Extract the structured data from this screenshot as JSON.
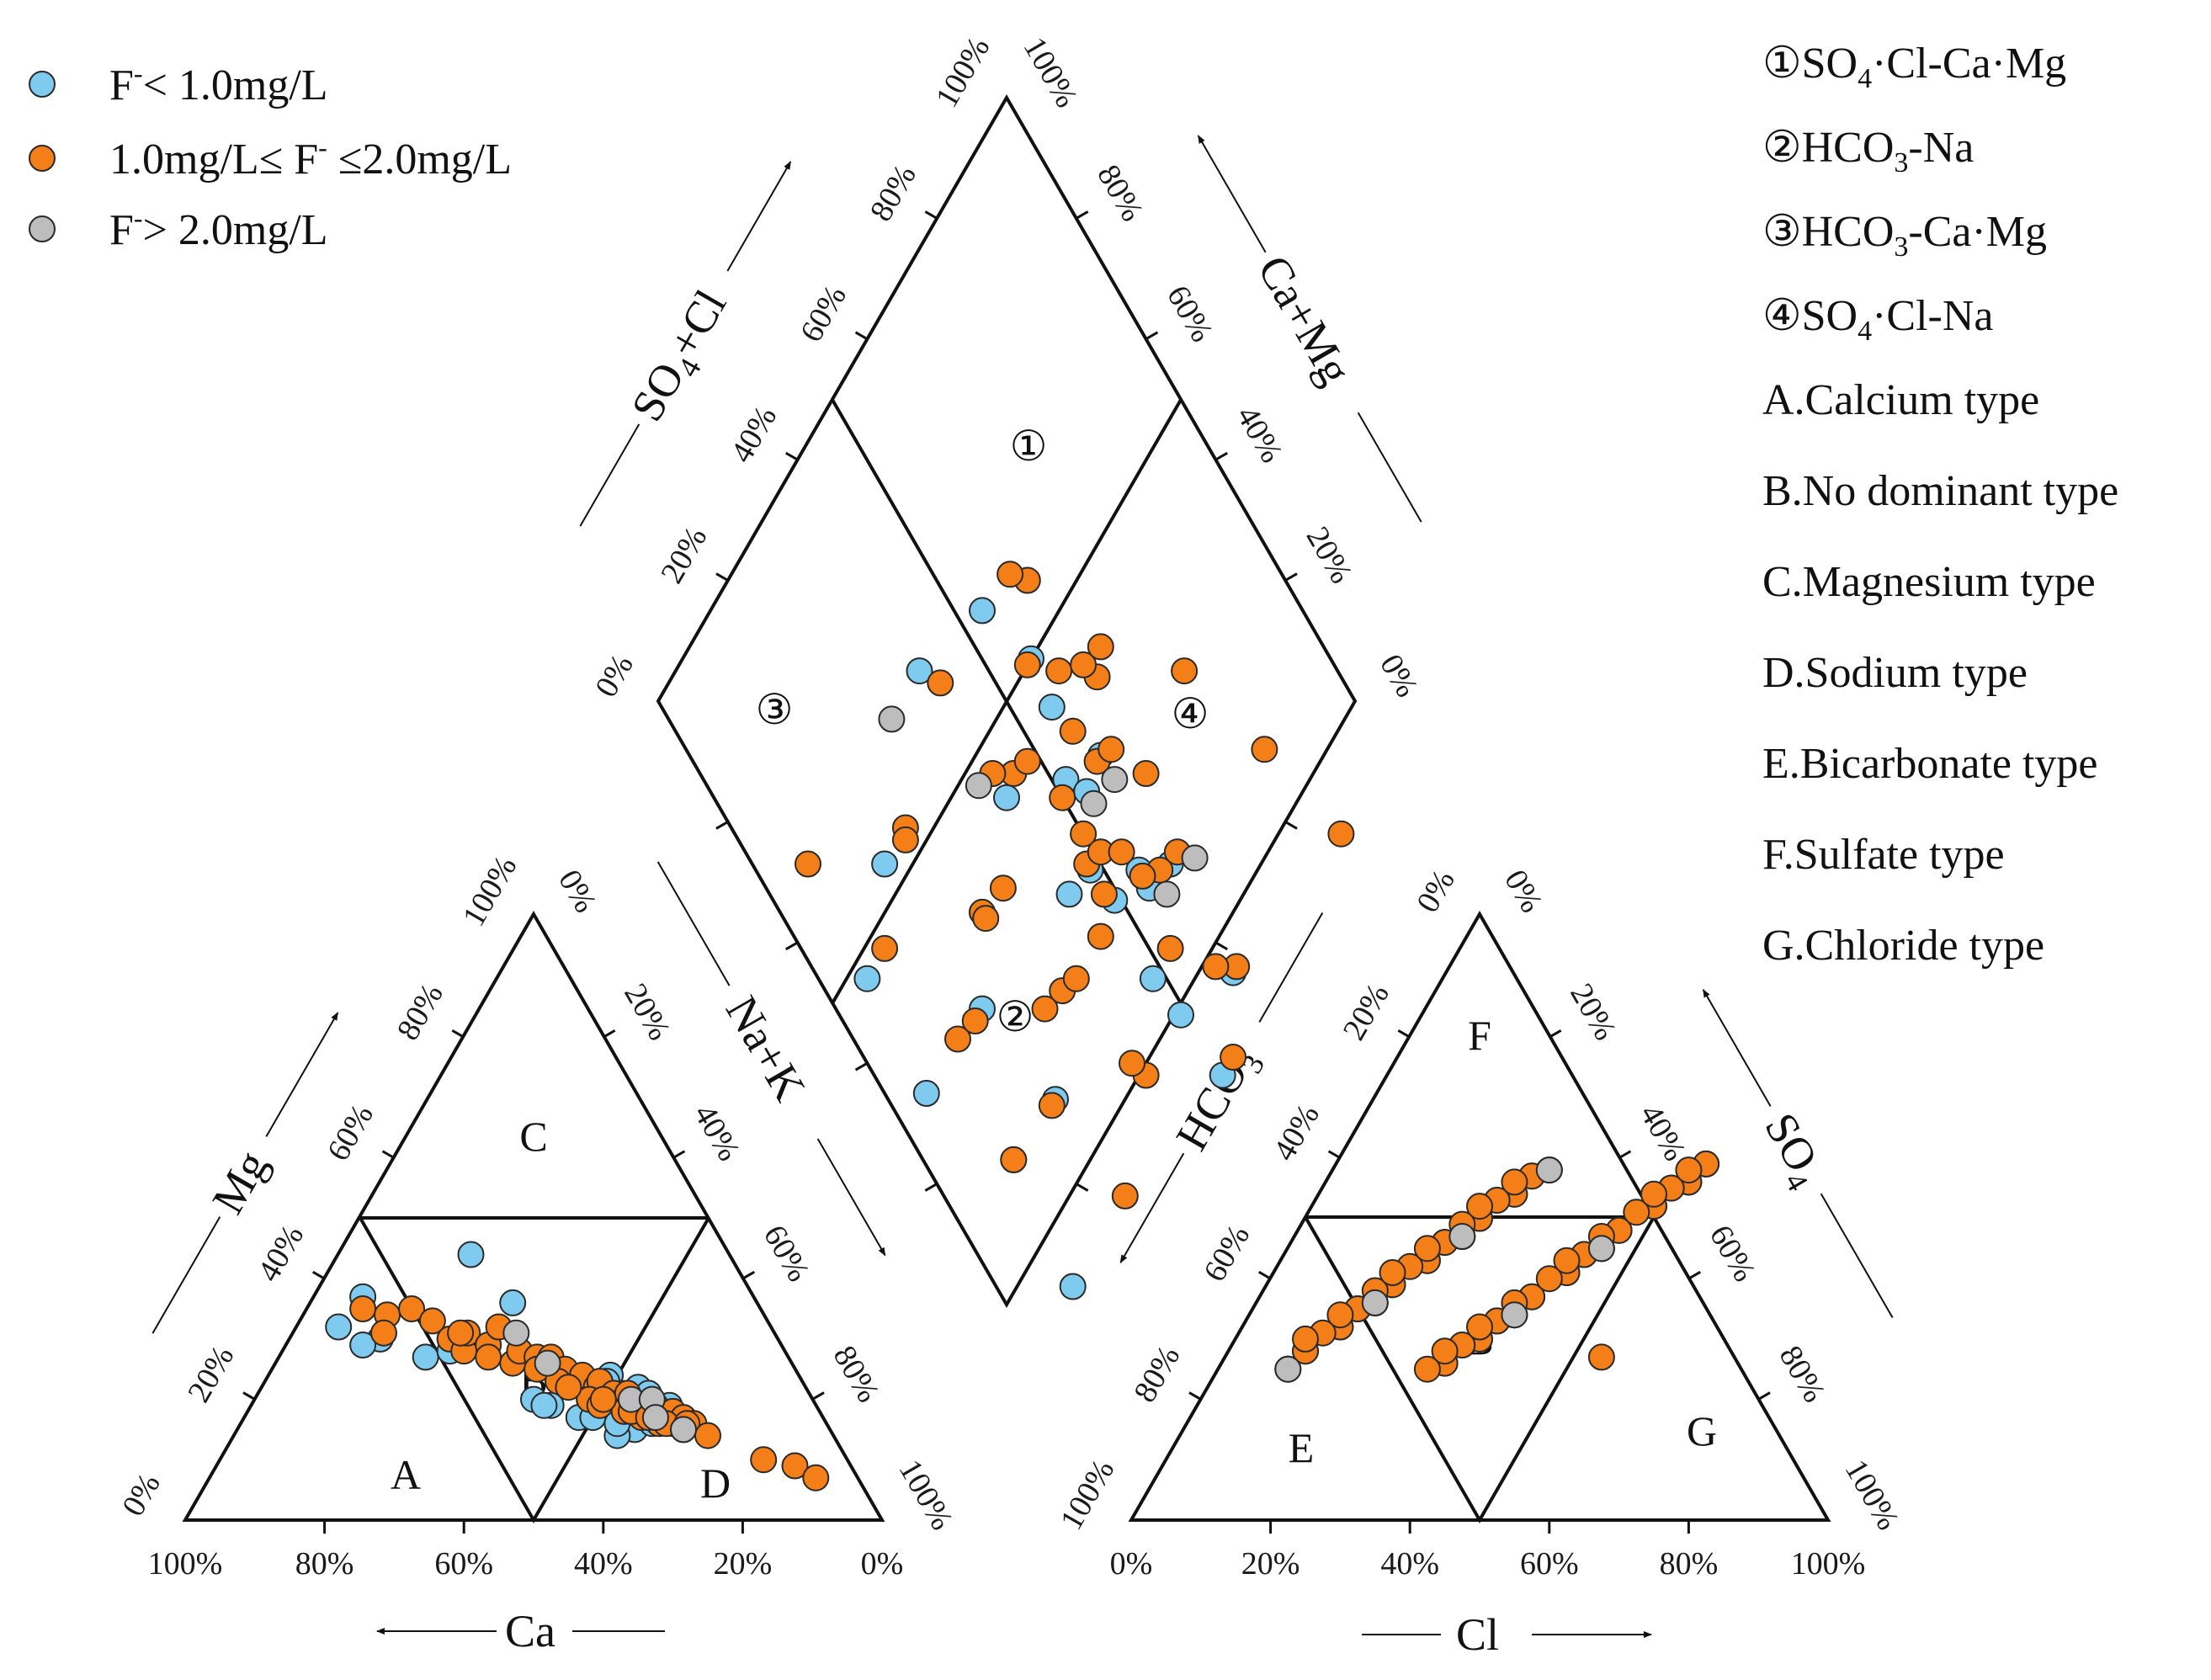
{
  "chart_data": {
    "type": "scatter",
    "title": "",
    "colors": {
      "low": "#7fcbef",
      "mid": "#f47e17",
      "high": "#bdbdbd"
    },
    "legend": {
      "position": "top-left",
      "entries": [
        {
          "key": "low",
          "parts": [
            "F",
            "-",
            "< 1.0mg/L"
          ]
        },
        {
          "key": "mid",
          "parts": [
            "1.0mg/L≤ F",
            "-",
            " ≤2.0mg/L"
          ]
        },
        {
          "key": "high",
          "parts": [
            "F",
            "-",
            "> 2.0mg/L"
          ]
        }
      ]
    },
    "zone_notes": [
      [
        "①SO",
        "4",
        "·Cl-Ca·Mg"
      ],
      [
        "②HCO",
        "3",
        "-Na"
      ],
      [
        "③HCO",
        "3",
        "-Ca·Mg"
      ],
      [
        "④SO",
        "4",
        "·Cl-Na"
      ],
      [
        "A.Calcium type"
      ],
      [
        "B.No dominant type"
      ],
      [
        "C.Magnesium type"
      ],
      [
        "D.Sodium type"
      ],
      [
        "E.Bicarbonate type"
      ],
      [
        "F.Sulfate type"
      ],
      [
        "G.Chloride type"
      ]
    ],
    "axes": {
      "ca": "Ca",
      "mg": "Mg",
      "nak": "Na+K",
      "cl": "Cl",
      "so4": [
        "SO",
        "4"
      ],
      "hco3": [
        "HCO",
        "3"
      ],
      "so4cl": [
        "SO",
        "4",
        "+Cl"
      ],
      "camg": "Ca+Mg"
    },
    "tick_labels": [
      "0%",
      "20%",
      "40%",
      "60%",
      "80%",
      "100%"
    ],
    "tick_labels_reversed": [
      "100%",
      "80%",
      "60%",
      "40%",
      "20%",
      "0%"
    ],
    "zone_labels": {
      "cation": [
        "A",
        "B",
        "C",
        "D"
      ],
      "anion": [
        "E",
        "B",
        "F",
        "G"
      ],
      "diamond": [
        "①",
        "②",
        "③",
        "④"
      ]
    },
    "units": "percent of meq",
    "series": [
      {
        "name": "F- < 1.0mg/L",
        "key": "low",
        "points": [
          [
            40,
            20,
            0
          ],
          [
            56,
            37,
            34
          ],
          [
            62,
            32,
            29
          ],
          [
            57,
            30,
            33
          ],
          [
            52,
            27,
            27
          ],
          [
            48,
            28,
            33
          ],
          [
            60,
            29,
            30
          ],
          [
            37,
            44,
            0
          ],
          [
            35,
            36,
            0
          ],
          [
            27,
            24,
            0
          ],
          [
            27,
            21,
            0
          ],
          [
            26,
            19,
            0
          ],
          [
            28,
            23,
            0
          ],
          [
            24,
            22,
            0
          ],
          [
            23,
            21,
            0
          ],
          [
            38,
            19,
            0
          ],
          [
            39,
            19,
            0
          ],
          [
            32,
            20,
            0
          ],
          [
            35,
            17,
            0
          ],
          [
            33,
            17,
            0
          ],
          [
            28,
            15,
            0
          ],
          [
            25,
            16,
            0
          ],
          [
            31,
            14,
            0
          ],
          [
            30,
            16,
            0
          ],
          [
            22,
            18,
            0
          ],
          [
            21,
            19,
            0
          ]
        ]
      },
      {
        "name": "1.0mg/L <= F- <= 2.0mg/L",
        "key": "mid",
        "points": [
          [
            57,
            35,
            0
          ],
          [
            54,
            34,
            0
          ],
          [
            50,
            35,
            0
          ],
          [
            56,
            31,
            0
          ],
          [
            48,
            33,
            0
          ],
          [
            47,
            30,
            0
          ],
          [
            46,
            28,
            0
          ],
          [
            44,
            31,
            0
          ],
          [
            42,
            29,
            0
          ],
          [
            40,
            26,
            0
          ],
          [
            38,
            28,
            0
          ],
          [
            36,
            27,
            0
          ],
          [
            34,
            27,
            0
          ],
          [
            33,
            25,
            0
          ],
          [
            31,
            24,
            0
          ],
          [
            30,
            22,
            0
          ],
          [
            29,
            23,
            0
          ],
          [
            28,
            21,
            0
          ],
          [
            27,
            20,
            0
          ],
          [
            26,
            21,
            0
          ],
          [
            25,
            19,
            0
          ],
          [
            24,
            18,
            0
          ],
          [
            23,
            19,
            0
          ],
          [
            22,
            17,
            0
          ],
          [
            22,
            16,
            0
          ],
          [
            21,
            18,
            0
          ],
          [
            20,
            17,
            0
          ],
          [
            19,
            16,
            0
          ],
          [
            28,
            18,
            0
          ],
          [
            26,
            17,
            0
          ],
          [
            32,
            20,
            0
          ],
          [
            37,
            25,
            0
          ],
          [
            43,
            27,
            0
          ],
          [
            35,
            23,
            0
          ],
          [
            31,
            19,
            0
          ],
          [
            24,
            16,
            0
          ],
          [
            12,
            10,
            0
          ],
          [
            8,
            9,
            0
          ],
          [
            6,
            7,
            0
          ],
          [
            45,
            31,
            0
          ],
          [
            39,
            32,
            0
          ],
          [
            34,
            22,
            0
          ],
          [
            30,
            20,
            0
          ],
          [
            27,
            18,
            0
          ],
          [
            25,
            17,
            0
          ],
          [
            23,
            16,
            0
          ],
          [
            21,
            15,
            0
          ],
          [
            20,
            16,
            0
          ],
          [
            18,
            14,
            0
          ]
        ]
      },
      {
        "name": "F- > 2.0mg/L",
        "key": "high",
        "points": [
          [
            37,
            31,
            0
          ],
          [
            35,
            26,
            0
          ],
          [
            26,
            20,
            0
          ],
          [
            23,
            20,
            0
          ],
          [
            24,
            17,
            0
          ],
          [
            21,
            15,
            0
          ]
        ]
      }
    ]
  }
}
